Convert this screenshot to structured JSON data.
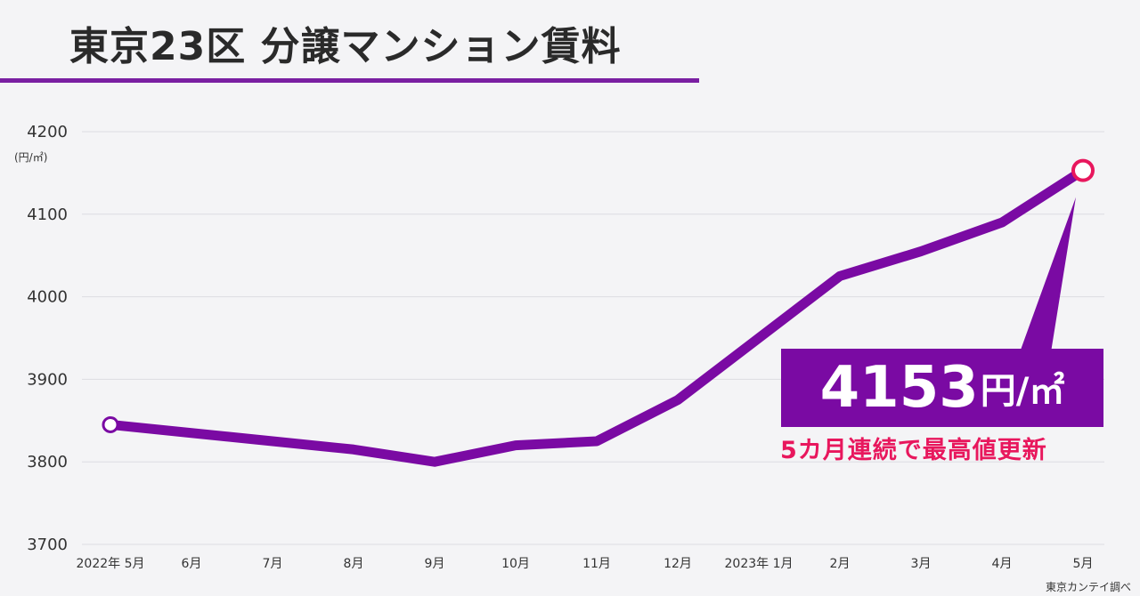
{
  "title": "東京23区 分譲マンション賃料",
  "unit_label": "(円/㎡)",
  "source": "東京カンテイ調べ",
  "callout": {
    "value": "4153",
    "unit": "円/㎡",
    "subtitle": "5カ月連続で最高値更新"
  },
  "colors": {
    "line": "#7a0aa3",
    "title_rule": "#7a1fa2",
    "highlight_marker": "#e8175d",
    "callout_text": "#e8175d"
  },
  "chart_data": {
    "type": "line",
    "title": "東京23区 分譲マンション賃料",
    "ylabel": "(円/㎡)",
    "xlabel": "",
    "ylim": [
      3700,
      4200
    ],
    "yticks": [
      3700,
      3800,
      3900,
      4000,
      4100,
      4200
    ],
    "grid": true,
    "categories": [
      "2022年 5月",
      "6月",
      "7月",
      "8月",
      "9月",
      "10月",
      "11月",
      "12月",
      "2023年 1月",
      "2月",
      "3月",
      "4月",
      "5月"
    ],
    "series": [
      {
        "values": [
          3845,
          3835,
          3825,
          3815,
          3800,
          3820,
          3825,
          3875,
          3950,
          4025,
          4055,
          4090,
          4153
        ]
      }
    ]
  }
}
